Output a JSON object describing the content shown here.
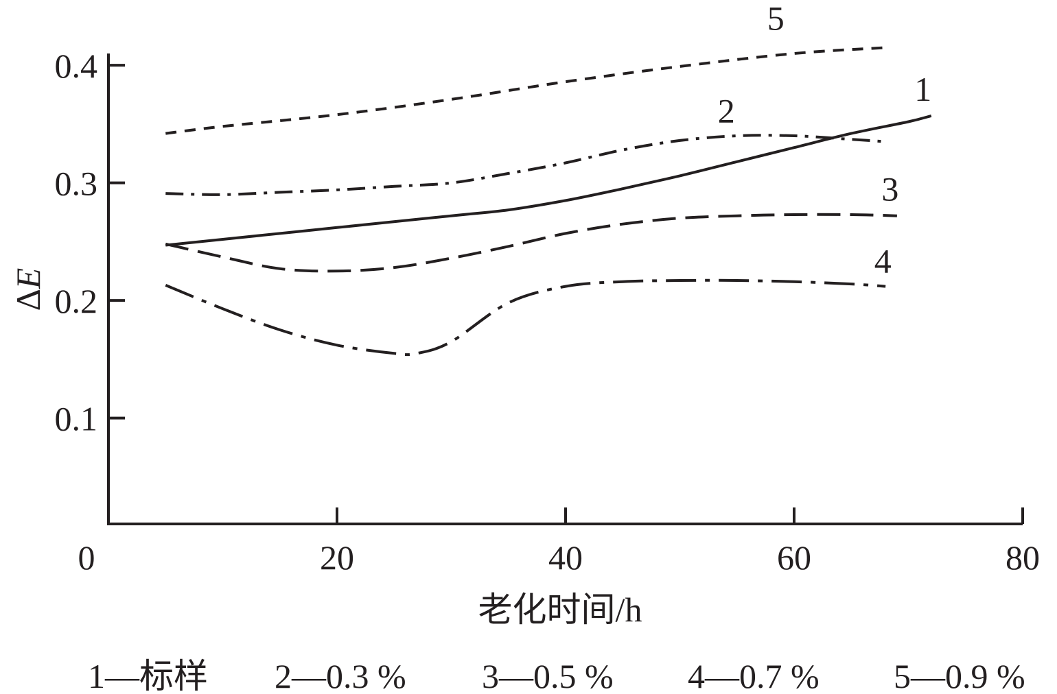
{
  "chart_data": {
    "type": "line",
    "xlabel": "老化时间/h",
    "ylabel_prefix": "Δ",
    "ylabel_var": "E",
    "xlim": [
      0,
      80
    ],
    "ylim": [
      0.01,
      0.41
    ],
    "xticks": [
      0,
      20,
      40,
      60,
      80
    ],
    "xtick_labels": [
      "0",
      "20",
      "40",
      "60",
      "80"
    ],
    "yticks": [
      0.1,
      0.2,
      0.3,
      0.4
    ],
    "ytick_labels": [
      "0.1",
      "0.2",
      "0.3",
      "0.4"
    ],
    "grid": false,
    "legend_position": "bottom",
    "series": [
      {
        "id": "1",
        "label": "1",
        "legend": "1—标样",
        "dash": "none",
        "x": [
          5,
          10,
          20,
          30,
          35,
          40,
          45,
          50,
          55,
          60,
          65,
          70,
          72
        ],
        "y": [
          0.247,
          0.252,
          0.262,
          0.272,
          0.277,
          0.285,
          0.295,
          0.306,
          0.318,
          0.33,
          0.342,
          0.352,
          0.357
        ]
      },
      {
        "id": "2",
        "label": "2",
        "legend": "2—0.3 %",
        "dash": "dashdot",
        "x": [
          5,
          10,
          15,
          20,
          25,
          30,
          35,
          40,
          45,
          50,
          55,
          60,
          65,
          68
        ],
        "y": [
          0.291,
          0.29,
          0.292,
          0.294,
          0.297,
          0.3,
          0.308,
          0.317,
          0.328,
          0.336,
          0.34,
          0.34,
          0.337,
          0.335
        ]
      },
      {
        "id": "3",
        "label": "3",
        "legend": "3—0.5 %",
        "dash": "longdash",
        "x": [
          5,
          10,
          15,
          20,
          25,
          30,
          35,
          40,
          45,
          50,
          55,
          60,
          65,
          69
        ],
        "y": [
          0.248,
          0.237,
          0.227,
          0.225,
          0.228,
          0.236,
          0.246,
          0.257,
          0.265,
          0.27,
          0.272,
          0.273,
          0.273,
          0.272
        ]
      },
      {
        "id": "4",
        "label": "4",
        "legend": "4—0.7 %",
        "dash": "longdashdot",
        "x": [
          5,
          10,
          15,
          20,
          25,
          27,
          30,
          35,
          40,
          45,
          50,
          55,
          60,
          65,
          68
        ],
        "y": [
          0.213,
          0.193,
          0.175,
          0.162,
          0.155,
          0.155,
          0.165,
          0.198,
          0.212,
          0.216,
          0.217,
          0.217,
          0.216,
          0.214,
          0.212
        ]
      },
      {
        "id": "5",
        "label": "5",
        "legend": "5—0.9 %",
        "dash": "shortdash",
        "x": [
          5,
          10,
          20,
          30,
          40,
          50,
          60,
          68
        ],
        "y": [
          0.342,
          0.348,
          0.358,
          0.371,
          0.386,
          0.399,
          0.41,
          0.415
        ]
      }
    ]
  }
}
